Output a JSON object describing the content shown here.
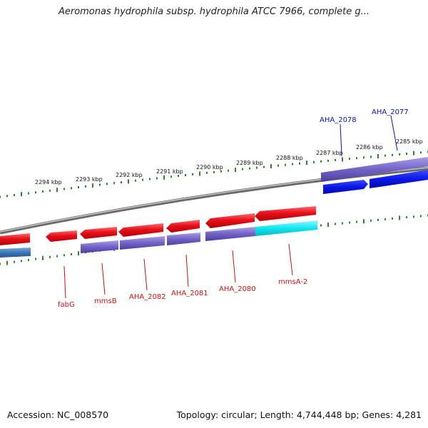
{
  "title": "Aeromonas hydrophila subsp. hydrophila ATCC 7966, complete g...",
  "footer": {
    "accession": "Accession: NC_008570",
    "topology": "Topology: circular; Length: 4,744,448 bp; Genes: 4,281"
  },
  "colors": {
    "backbone": "#8c8c8c",
    "tick": "#2a8a2a",
    "gene_red": "#e8101a",
    "gene_blue": "#0c18e6",
    "gene_purple": "#7262c6",
    "gene_cyan": "#10e6ef",
    "gene_steel": "#3a78b8",
    "label_red": "#d01010",
    "label_blue": "#1010b0"
  },
  "tick_labels": [
    "2294 kbp",
    "2293 kbp",
    "2292 kbp",
    "2291 kbp",
    "2290 kbp",
    "2289 kbp",
    "2288 kbp",
    "2287 kbp",
    "2286 kbp",
    "2285 kbp"
  ],
  "gene_labels": {
    "fabG": "fabG",
    "mmsB": "mmsB",
    "AHA_2082": "AHA_2082",
    "AHA_2081": "AHA_2081",
    "AHA_2080": "AHA_2080",
    "mmsA_2": "mmsA-2",
    "AHA_2078": "AHA_2078",
    "AHA_2077": "AHA_2077"
  }
}
